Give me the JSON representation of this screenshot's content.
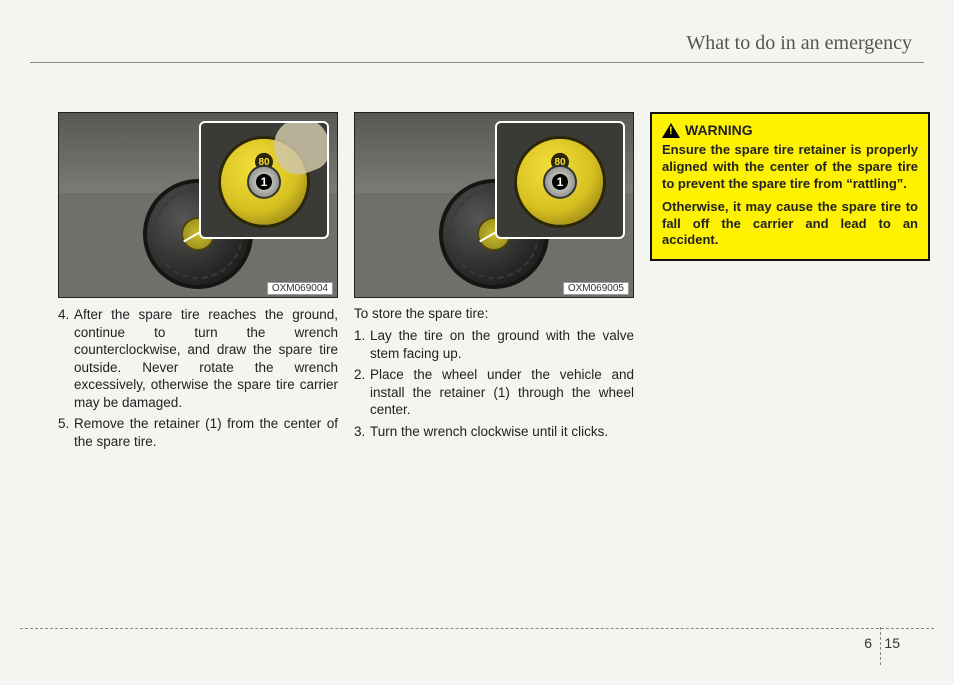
{
  "header": {
    "title": "What to do in an emergency"
  },
  "figures": {
    "left": {
      "label": "OXM069004",
      "inset_badge": "80",
      "inset_num": "1"
    },
    "right": {
      "label": "OXM069005",
      "inset_badge": "80",
      "inset_num": "1"
    }
  },
  "col1": {
    "items": [
      {
        "num": "4.",
        "text": "After the spare tire reaches the ground, continue to turn the wrench counterclockwise, and draw the spare tire outside. Never rotate the wrench excessively, otherwise the spare tire carrier may be damaged."
      },
      {
        "num": "5.",
        "text": "Remove the retainer (1) from the center of the spare tire."
      }
    ]
  },
  "col2": {
    "intro": "To store the spare tire:",
    "items": [
      {
        "num": "1.",
        "text": "Lay the tire on the ground with the valve stem facing up."
      },
      {
        "num": "2.",
        "text": "Place the wheel under the vehicle and install the retainer (1) through the wheel center."
      },
      {
        "num": "3.",
        "text": "Turn the wrench clockwise until it clicks."
      }
    ]
  },
  "warning": {
    "title": "WARNING",
    "p1": "Ensure the spare tire retainer is properly aligned with the center of the spare tire to prevent the spare tire from “rattling”.",
    "p2": "Otherwise, it may cause the spare tire to fall off the carrier and lead to an accident."
  },
  "footer": {
    "chapter": "6",
    "page": "15"
  }
}
